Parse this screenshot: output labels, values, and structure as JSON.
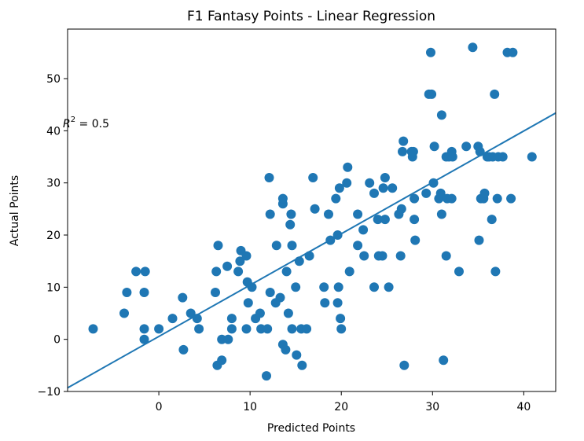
{
  "chart_data": {
    "type": "scatter",
    "title": "F1 Fantasy Points - Linear Regression",
    "xlabel": "Predicted Points",
    "ylabel": "Actual Points",
    "xlim": [
      -10,
      43.5
    ],
    "ylim": [
      -10,
      59.5
    ],
    "x_ticks": [
      0,
      10,
      20,
      30,
      40
    ],
    "y_ticks": [
      -10,
      0,
      10,
      20,
      30,
      40,
      50
    ],
    "x_tick_labels": [
      "0",
      "10",
      "20",
      "30",
      "40"
    ],
    "y_tick_labels": [
      "−10",
      "0",
      "10",
      "20",
      "30",
      "40",
      "50"
    ],
    "annotation": {
      "text_r": "R",
      "text_sup": "2",
      "text_rest": " = 0.5"
    },
    "grid": false,
    "colors": {
      "points": "#1f77b4",
      "line": "#1f77b4"
    },
    "regression_line": {
      "x": [
        -10,
        43.5
      ],
      "y": [
        -9.3,
        43.4
      ]
    },
    "points": [
      [
        -7.2,
        2
      ],
      [
        -3.8,
        5
      ],
      [
        -3.5,
        9
      ],
      [
        -2.5,
        13
      ],
      [
        -1.5,
        13
      ],
      [
        -1.6,
        9
      ],
      [
        -1.6,
        2
      ],
      [
        -1.6,
        0
      ],
      [
        0,
        2
      ],
      [
        1.5,
        4
      ],
      [
        2.6,
        8
      ],
      [
        2.7,
        -2
      ],
      [
        3.5,
        5
      ],
      [
        4.2,
        4
      ],
      [
        4.4,
        2
      ],
      [
        6.2,
        9
      ],
      [
        6.3,
        13
      ],
      [
        6.4,
        -5
      ],
      [
        6.5,
        18
      ],
      [
        6.9,
        0
      ],
      [
        6.9,
        -4
      ],
      [
        7.5,
        14
      ],
      [
        7.6,
        0
      ],
      [
        8,
        2
      ],
      [
        8,
        4
      ],
      [
        8.7,
        13
      ],
      [
        8.9,
        15
      ],
      [
        9,
        17
      ],
      [
        9.6,
        16
      ],
      [
        9.7,
        11
      ],
      [
        9.6,
        2
      ],
      [
        9.8,
        7
      ],
      [
        10.2,
        10
      ],
      [
        10.6,
        4
      ],
      [
        11.1,
        5
      ],
      [
        11.2,
        2
      ],
      [
        11.8,
        -7
      ],
      [
        11.9,
        2
      ],
      [
        12.1,
        31
      ],
      [
        12.2,
        9
      ],
      [
        12.2,
        24
      ],
      [
        12.8,
        7
      ],
      [
        12.9,
        18
      ],
      [
        13.3,
        8
      ],
      [
        13.6,
        26
      ],
      [
        13.6,
        27
      ],
      [
        13.6,
        -1
      ],
      [
        13.9,
        -2
      ],
      [
        14,
        13
      ],
      [
        14.2,
        5
      ],
      [
        14.4,
        22
      ],
      [
        14.5,
        24
      ],
      [
        14.6,
        18
      ],
      [
        14.6,
        2
      ],
      [
        15,
        10
      ],
      [
        15.1,
        -3
      ],
      [
        15.4,
        15
      ],
      [
        15.6,
        2
      ],
      [
        15.7,
        -5
      ],
      [
        16.2,
        2
      ],
      [
        16.5,
        16
      ],
      [
        16.9,
        31
      ],
      [
        17.1,
        25
      ],
      [
        18.1,
        10
      ],
      [
        18.2,
        7
      ],
      [
        18.6,
        24
      ],
      [
        18.8,
        19
      ],
      [
        19.4,
        27
      ],
      [
        19.6,
        20
      ],
      [
        19.8,
        29
      ],
      [
        19.6,
        7
      ],
      [
        19.7,
        10
      ],
      [
        19.9,
        4
      ],
      [
        20,
        2
      ],
      [
        20.6,
        30
      ],
      [
        20.7,
        33
      ],
      [
        20.9,
        13
      ],
      [
        21.8,
        24
      ],
      [
        21.8,
        18
      ],
      [
        22.4,
        21
      ],
      [
        22.5,
        16
      ],
      [
        23.1,
        30
      ],
      [
        23.6,
        10
      ],
      [
        23.6,
        28
      ],
      [
        24,
        23
      ],
      [
        24.1,
        16
      ],
      [
        24.5,
        16
      ],
      [
        24.6,
        29
      ],
      [
        24.8,
        31
      ],
      [
        24.8,
        23
      ],
      [
        25.2,
        10
      ],
      [
        25.6,
        29
      ],
      [
        26.3,
        24
      ],
      [
        26.5,
        16
      ],
      [
        26.6,
        25
      ],
      [
        26.7,
        36
      ],
      [
        26.8,
        38
      ],
      [
        26.9,
        -5
      ],
      [
        27.7,
        36
      ],
      [
        27.8,
        35
      ],
      [
        27.9,
        36
      ],
      [
        28,
        27
      ],
      [
        28,
        23
      ],
      [
        28.1,
        19
      ],
      [
        29.3,
        28
      ],
      [
        29.6,
        47
      ],
      [
        29.8,
        55
      ],
      [
        29.9,
        47
      ],
      [
        30.1,
        30
      ],
      [
        30.2,
        37
      ],
      [
        30.7,
        27
      ],
      [
        30.9,
        28
      ],
      [
        31,
        24
      ],
      [
        31,
        43
      ],
      [
        31.2,
        -4
      ],
      [
        31.5,
        35
      ],
      [
        31.5,
        16
      ],
      [
        31.6,
        27
      ],
      [
        31.8,
        35
      ],
      [
        32.1,
        27
      ],
      [
        32.1,
        36
      ],
      [
        32.2,
        35
      ],
      [
        32.9,
        13
      ],
      [
        33.7,
        37
      ],
      [
        34.4,
        56
      ],
      [
        35,
        37
      ],
      [
        35.1,
        19
      ],
      [
        35.2,
        36
      ],
      [
        35.3,
        27
      ],
      [
        35.6,
        27
      ],
      [
        35.7,
        28
      ],
      [
        36,
        35
      ],
      [
        36.2,
        35
      ],
      [
        36.5,
        23
      ],
      [
        36.6,
        35
      ],
      [
        36.8,
        47
      ],
      [
        36.9,
        13
      ],
      [
        37.1,
        27
      ],
      [
        37.2,
        35
      ],
      [
        37.7,
        35
      ],
      [
        38.2,
        55
      ],
      [
        38.6,
        27
      ],
      [
        38.8,
        55
      ],
      [
        40.9,
        35
      ]
    ]
  }
}
